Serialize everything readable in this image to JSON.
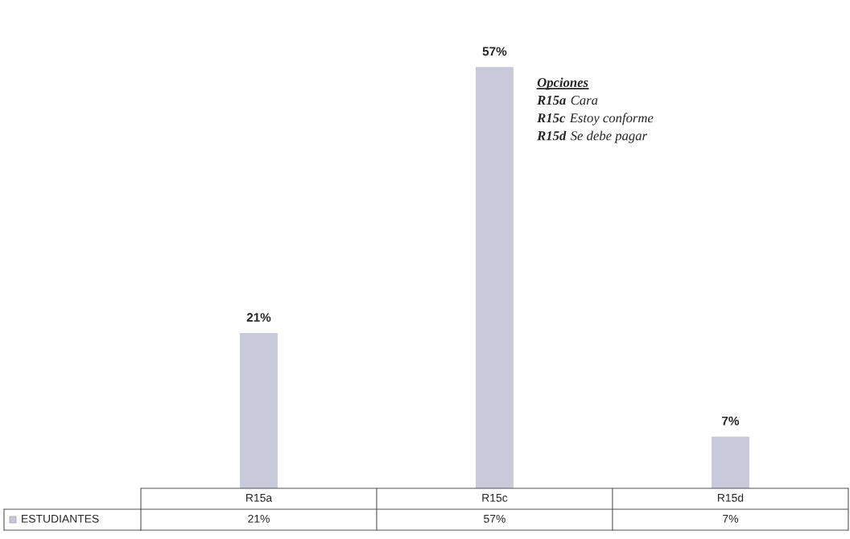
{
  "chart_data": {
    "type": "bar",
    "categories": [
      "R15a",
      "R15c",
      "R15d"
    ],
    "series": [
      {
        "name": "ESTUDIANTES",
        "color": "#c9c9dc",
        "values": [
          21,
          57,
          7
        ],
        "value_labels": [
          "21%",
          "57%",
          "7%"
        ]
      }
    ],
    "annotations": [
      "Opciones",
      "R15a Cara",
      "R15c Estoy conforme",
      "R15d Se debe pagar"
    ]
  }
}
